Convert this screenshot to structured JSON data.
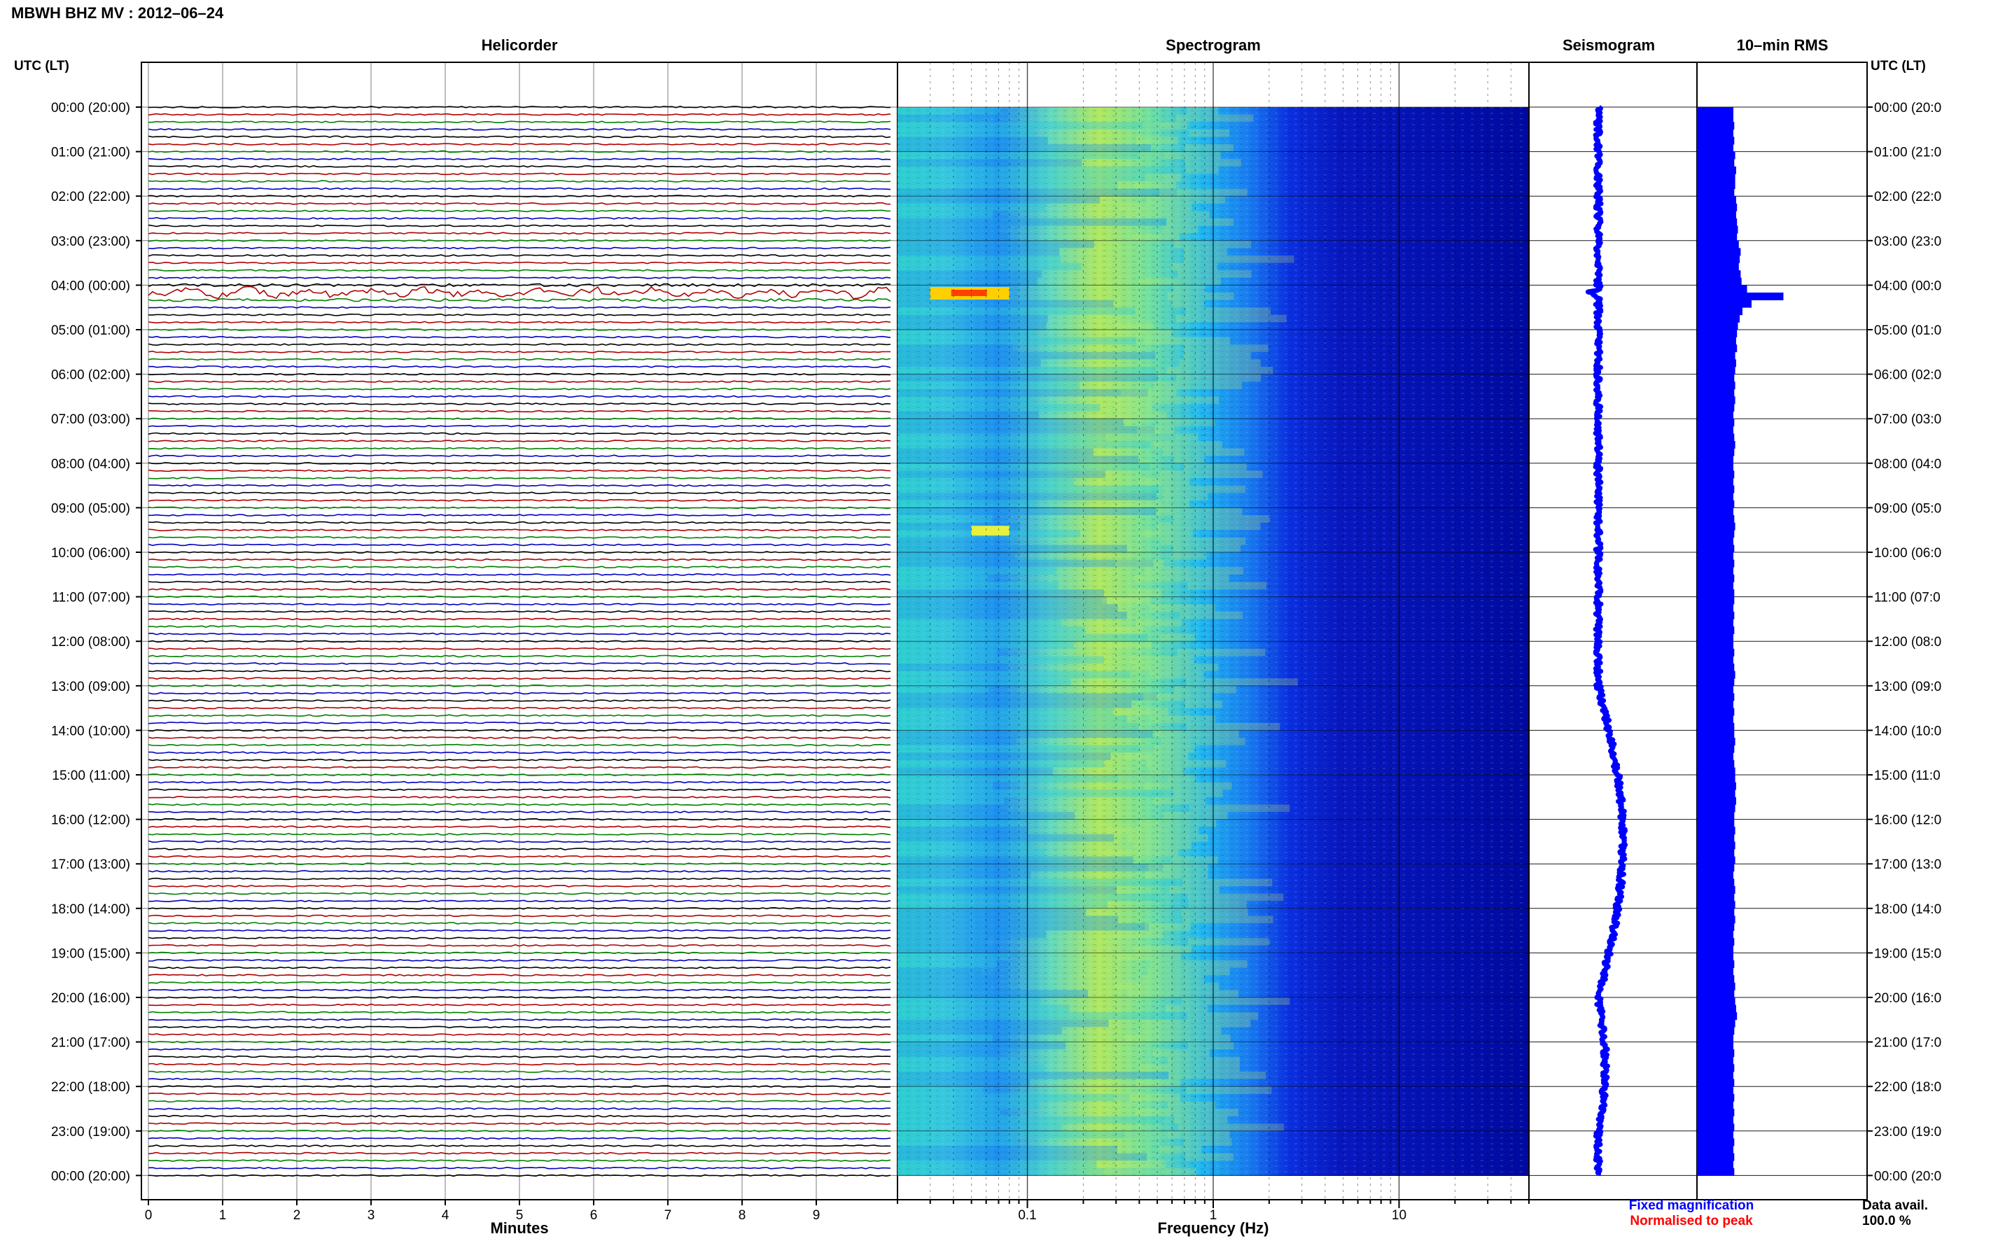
{
  "title": "MBWH BHZ MV : 2012–06–24",
  "panels": {
    "helicorder": "Helicorder",
    "spectrogram": "Spectrogram",
    "seismogram": "Seismogram",
    "rms": "10–min RMS"
  },
  "axis_labels": {
    "left": "UTC (LT)",
    "right": "UTC (LT)",
    "minutes": "Minutes",
    "frequency": "Frequency (Hz)"
  },
  "hour_labels": [
    "00:00 (20:00)",
    "01:00 (21:00)",
    "02:00 (22:00)",
    "03:00 (23:00)",
    "04:00 (00:00)",
    "05:00 (01:00)",
    "06:00 (02:00)",
    "07:00 (03:00)",
    "08:00 (04:00)",
    "09:00 (05:00)",
    "10:00 (06:00)",
    "11:00 (07:00)",
    "12:00 (08:00)",
    "13:00 (09:00)",
    "14:00 (10:00)",
    "15:00 (11:00)",
    "16:00 (12:00)",
    "17:00 (13:00)",
    "18:00 (14:00)",
    "19:00 (15:00)",
    "20:00 (16:00)",
    "21:00 (17:00)",
    "22:00 (18:00)",
    "23:00 (19:00)",
    "00:00 (20:00)"
  ],
  "right_hour_labels": [
    "00:00 (20:0",
    "01:00 (21:0",
    "02:00 (22:0",
    "03:00 (23:0",
    "04:00 (00:0",
    "05:00 (01:0",
    "06:00 (02:0",
    "07:00 (03:0",
    "08:00 (04:0",
    "09:00 (05:0",
    "10:00 (06:0",
    "11:00 (07:0",
    "12:00 (08:0",
    "13:00 (09:0",
    "14:00 (10:0",
    "15:00 (11:0",
    "16:00 (12:0",
    "17:00 (13:0",
    "18:00 (14:0",
    "19:00 (15:0",
    "20:00 (16:0",
    "21:00 (17:0",
    "22:00 (18:0",
    "23:00 (19:0",
    "00:00 (20:0"
  ],
  "minute_ticks": [
    "0",
    "1",
    "2",
    "3",
    "4",
    "5",
    "6",
    "7",
    "8",
    "9"
  ],
  "frequency_ticks": [
    "0.1",
    "1",
    "10"
  ],
  "legend": {
    "fixed": "Fixed magnification",
    "normalised": "Normalised to peak"
  },
  "data_avail": {
    "label": "Data avail.",
    "value": "100.0 %"
  },
  "colors": {
    "trace_cycle": [
      "#000000",
      "#b00000",
      "#008000",
      "#0000c0"
    ],
    "fixed": "#0000ff",
    "normalised": "#ff0000",
    "rms_bar": "#0000ff",
    "spectrogram_colormap": "jet"
  },
  "chart_data": [
    {
      "type": "line",
      "panel": "helicorder",
      "xlabel": "Minutes",
      "xlim": [
        0,
        10
      ],
      "rows_per_hour": 6,
      "row_minutes": 10,
      "hours": 24,
      "events": [
        {
          "time_utc": "04:10",
          "description": "long-period oscillation"
        }
      ]
    },
    {
      "type": "heatmap",
      "panel": "spectrogram",
      "xlabel": "Frequency (Hz)",
      "xscale": "log",
      "xlim": [
        0.02,
        50
      ],
      "xticks": [
        0.1,
        1,
        10
      ],
      "ytime_utc": [
        "00:00",
        "24:00"
      ],
      "colormap": "jet",
      "hot_spots": [
        {
          "time_utc": "04:10",
          "freq_hz": [
            0.03,
            0.08
          ],
          "level": "high"
        },
        {
          "time_utc": "09:30",
          "freq_hz": [
            0.05,
            0.08
          ],
          "level": "medium"
        }
      ]
    },
    {
      "type": "line",
      "panel": "seismogram",
      "notes": "Daily trace drifts right toward 17:00 then returns"
    },
    {
      "type": "bar",
      "panel": "rms",
      "interval_minutes": 10,
      "values_relative": [
        0.4,
        0.4,
        0.41,
        0.4,
        0.41,
        0.4,
        0.42,
        0.41,
        0.43,
        0.42,
        0.42,
        0.41,
        0.43,
        0.44,
        0.43,
        0.44,
        0.45,
        0.44,
        0.46,
        0.48,
        0.47,
        0.46,
        0.48,
        0.49,
        0.55,
        0.95,
        0.6,
        0.5,
        0.47,
        0.45,
        0.44,
        0.43,
        0.44,
        0.42,
        0.43,
        0.42,
        0.41,
        0.42,
        0.41,
        0.42,
        0.41,
        0.4,
        0.41,
        0.4,
        0.41,
        0.42,
        0.41,
        0.4,
        0.4,
        0.41,
        0.4,
        0.41,
        0.4,
        0.41,
        0.4,
        0.41,
        0.42,
        0.41,
        0.4,
        0.41,
        0.4,
        0.41,
        0.4,
        0.41,
        0.4,
        0.41,
        0.41,
        0.4,
        0.41,
        0.4,
        0.41,
        0.4,
        0.4,
        0.41,
        0.4,
        0.41,
        0.42,
        0.41,
        0.4,
        0.41,
        0.4,
        0.41,
        0.4,
        0.41,
        0.41,
        0.42,
        0.41,
        0.4,
        0.41,
        0.42,
        0.42,
        0.43,
        0.42,
        0.43,
        0.42,
        0.41,
        0.41,
        0.42,
        0.41,
        0.42,
        0.41,
        0.42,
        0.41,
        0.4,
        0.41,
        0.42,
        0.41,
        0.42,
        0.41,
        0.42,
        0.41,
        0.4,
        0.41,
        0.4,
        0.4,
        0.41,
        0.4,
        0.41,
        0.42,
        0.41,
        0.42,
        0.43,
        0.44,
        0.42,
        0.41,
        0.4,
        0.4,
        0.41,
        0.4,
        0.41,
        0.4,
        0.41,
        0.4,
        0.41,
        0.4,
        0.41,
        0.4,
        0.41,
        0.4,
        0.41,
        0.4,
        0.41,
        0.4,
        0.41
      ]
    }
  ]
}
